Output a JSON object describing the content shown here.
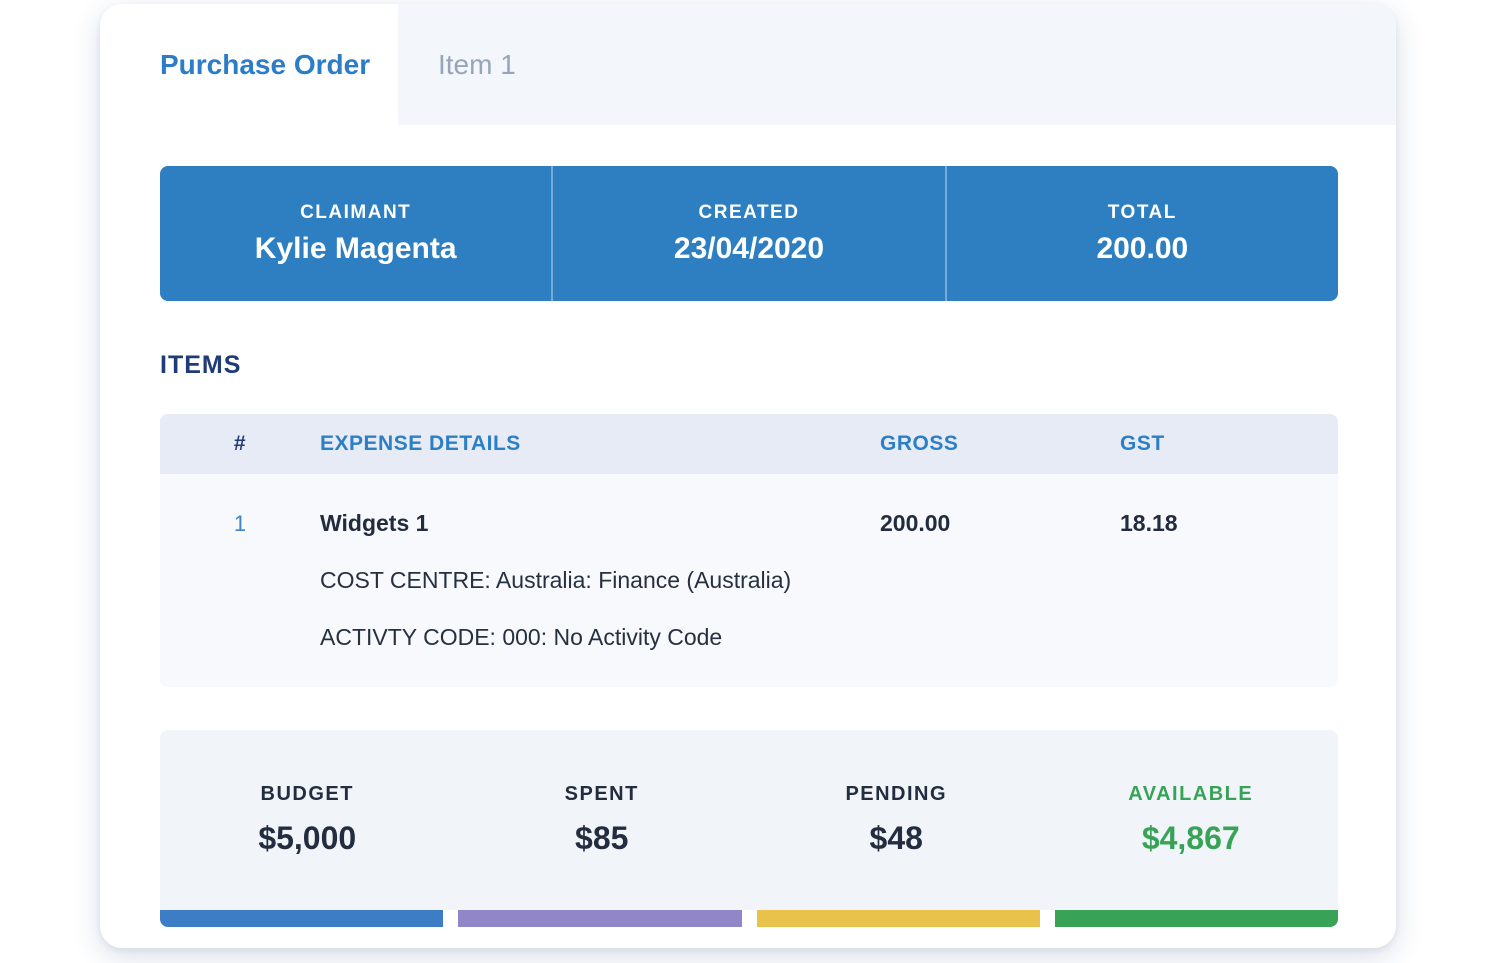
{
  "tabs": {
    "purchase_order": "Purchase Order",
    "item_1": "Item 1"
  },
  "summary_bar": {
    "claimant_label": "CLAIMANT",
    "claimant_value": "Kylie Magenta",
    "created_label": "CREATED",
    "created_value": "23/04/2020",
    "total_label": "TOTAL",
    "total_value": "200.00"
  },
  "items": {
    "section_title": "ITEMS",
    "columns": {
      "num": "#",
      "details": "EXPENSE DETAILS",
      "gross": "GROSS",
      "gst": "GST"
    },
    "row": {
      "num": "1",
      "name": "Widgets 1",
      "gross": "200.00",
      "gst": "18.18",
      "cost_centre": "COST CENTRE: Australia: Finance (Australia)",
      "activity_code": "ACTIVTY CODE: 000: No Activity Code"
    }
  },
  "budget": {
    "metrics": [
      {
        "label": "BUDGET",
        "value": "$5,000",
        "color": "#3d7dc6"
      },
      {
        "label": "SPENT",
        "value": "$85",
        "color": "#9187c8"
      },
      {
        "label": "PENDING",
        "value": "$48",
        "color": "#e8c24a"
      },
      {
        "label": "AVAILABLE",
        "value": "$4,867",
        "color": "#38a356"
      }
    ]
  },
  "colors": {
    "accent_blue": "#2e7fc1",
    "navy_heading": "#1e3c78",
    "text_dark": "#232c3e",
    "tab_inactive_text": "#98a4ba",
    "available_green": "#38a356"
  }
}
